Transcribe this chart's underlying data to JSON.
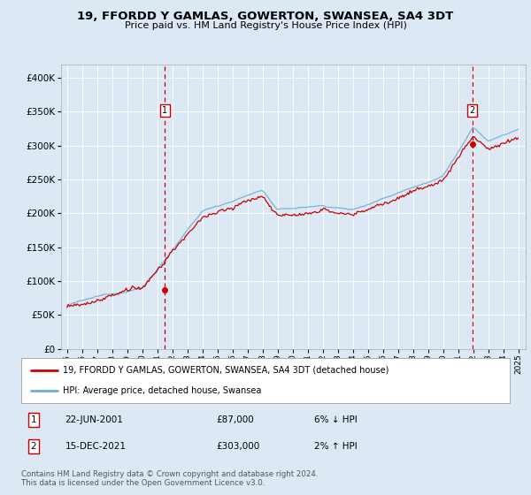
{
  "title": "19, FFORDD Y GAMLAS, GOWERTON, SWANSEA, SA4 3DT",
  "subtitle": "Price paid vs. HM Land Registry's House Price Index (HPI)",
  "background_color": "#dce9f5",
  "plot_bg_color": "#dce9f5",
  "hpi_color": "#6aafd6",
  "price_color": "#cc0000",
  "dashed_color": "#cc0000",
  "ylim": [
    0,
    420000
  ],
  "yticks": [
    0,
    50000,
    100000,
    150000,
    200000,
    250000,
    300000,
    350000,
    400000
  ],
  "legend_label_red": "19, FFORDD Y GAMLAS, GOWERTON, SWANSEA, SA4 3DT (detached house)",
  "legend_label_blue": "HPI: Average price, detached house, Swansea",
  "annotation1": {
    "label": "1",
    "date": "22-JUN-2001",
    "price": "£87,000",
    "pct": "6% ↓ HPI"
  },
  "annotation2": {
    "label": "2",
    "date": "15-DEC-2021",
    "price": "£303,000",
    "pct": "2% ↑ HPI"
  },
  "footer": "Contains HM Land Registry data © Crown copyright and database right 2024.\nThis data is licensed under the Open Government Licence v3.0.",
  "sale1_year": 2001.5,
  "sale1_price": 87000,
  "sale2_year": 2021.96,
  "sale2_price": 303000
}
